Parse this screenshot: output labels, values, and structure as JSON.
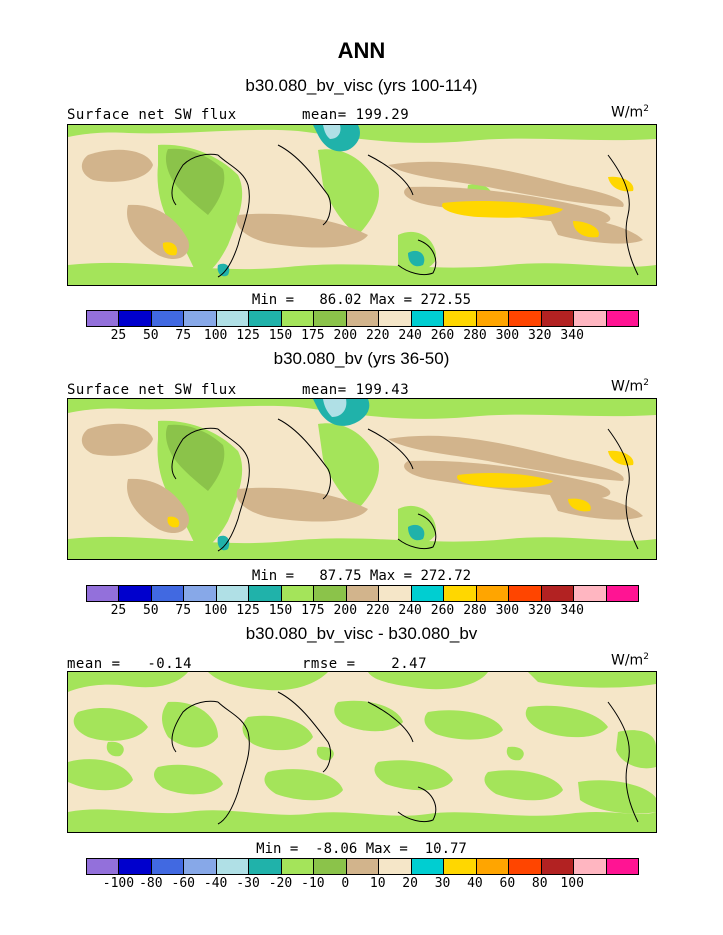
{
  "title": "ANN",
  "colorbar_colors": [
    "#9370db",
    "#0000cd",
    "#4169e1",
    "#87a8e8",
    "#b0e0e6",
    "#20b2aa",
    "#a4e45a",
    "#8bc34a",
    "#d2b48c",
    "#f5e6c8",
    "#00ced1",
    "#ffd700",
    "#ffa500",
    "#ff4500",
    "#b22222",
    "#ffb6c1",
    "#ff1493"
  ],
  "panels": [
    {
      "title": "b30.080_bv_visc (yrs 100-114)",
      "left_label": "Surface net SW flux",
      "center_label": "mean= 199.29",
      "units": "W/m",
      "units_sup": "2",
      "minmax": "Min =   86.02 Max = 272.55",
      "ticks": [
        "25",
        "50",
        "75",
        "100",
        "125",
        "150",
        "175",
        "200",
        "220",
        "240",
        "260",
        "280",
        "300",
        "320",
        "340"
      ]
    },
    {
      "title": "b30.080_bv (yrs 36-50)",
      "left_label": "Surface net SW flux",
      "center_label": "mean= 199.43",
      "units": "W/m",
      "units_sup": "2",
      "minmax": "Min =   87.75 Max = 272.72",
      "ticks": [
        "25",
        "50",
        "75",
        "100",
        "125",
        "150",
        "175",
        "200",
        "220",
        "240",
        "260",
        "280",
        "300",
        "320",
        "340"
      ]
    },
    {
      "title": "b30.080_bv_visc - b30.080_bv",
      "left_label": "mean =   -0.14",
      "center_label": "rmse =    2.47",
      "units": "W/m",
      "units_sup": "2",
      "minmax": "Min =  -8.06 Max =  10.77",
      "ticks": [
        "-100",
        "-80",
        "-60",
        "-40",
        "-30",
        "-20",
        "-10",
        "0",
        "10",
        "20",
        "30",
        "40",
        "60",
        "80",
        "100"
      ]
    }
  ]
}
